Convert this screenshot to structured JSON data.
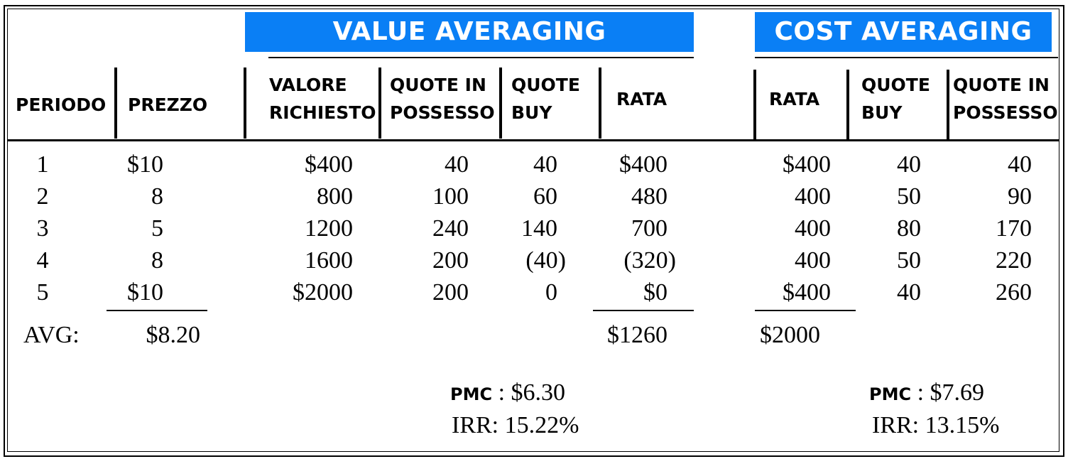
{
  "banners": {
    "value_averaging": "VALUE AVERAGING",
    "cost_averaging": "COST AVERAGING",
    "color": "#0a7ff5"
  },
  "headers": {
    "periodo": "PERIODO",
    "prezzo": "PREZZO",
    "va_valore": [
      "VALORE",
      "RICHIESTO"
    ],
    "va_quote_possesso": [
      "QUOTE IN",
      "POSSESSO"
    ],
    "va_quote_buy": [
      "QUOTE",
      "BUY"
    ],
    "va_rata": "RATA",
    "ca_rata": "RATA",
    "ca_quote_buy": [
      "QUOTE",
      "BUY"
    ],
    "ca_quote_possesso": [
      "QUOTE IN",
      "POSSESSO"
    ]
  },
  "rows": [
    {
      "periodo": "1",
      "prezzo": "$10",
      "va_valore": "$400",
      "va_possesso": "40",
      "va_buy": "40",
      "va_rata": "$400",
      "ca_rata": "$400",
      "ca_buy": "40",
      "ca_possesso": "40"
    },
    {
      "periodo": "2",
      "prezzo": "8",
      "va_valore": "800",
      "va_possesso": "100",
      "va_buy": "60",
      "va_rata": "480",
      "ca_rata": "400",
      "ca_buy": "50",
      "ca_possesso": "90"
    },
    {
      "periodo": "3",
      "prezzo": "5",
      "va_valore": "1200",
      "va_possesso": "240",
      "va_buy": "140",
      "va_rata": "700",
      "ca_rata": "400",
      "ca_buy": "80",
      "ca_possesso": "170"
    },
    {
      "periodo": "4",
      "prezzo": "8",
      "va_valore": "1600",
      "va_possesso": "200",
      "va_buy": "(40)",
      "va_rata": "(320)",
      "ca_rata": "400",
      "ca_buy": "50",
      "ca_possesso": "220"
    },
    {
      "periodo": "5",
      "prezzo": "$10",
      "va_valore": "$2000",
      "va_possesso": "200",
      "va_buy": "0",
      "va_rata": "$0",
      "ca_rata": "$400",
      "ca_buy": "40",
      "ca_possesso": "260"
    }
  ],
  "totals": {
    "avg_label": "AVG:",
    "avg_price": "$8.20",
    "va_rata_total": "$1260",
    "ca_rata_total": "$2000"
  },
  "value_averaging_summary": {
    "pmc_label": "PMC",
    "pmc_value": ": $6.30",
    "irr_label": "IRR:",
    "irr_value": "15.22%"
  },
  "cost_averaging_summary": {
    "pmc_label": "PMC",
    "pmc_value": ": $7.69",
    "irr_label": "IRR:",
    "irr_value": "13.15%"
  }
}
